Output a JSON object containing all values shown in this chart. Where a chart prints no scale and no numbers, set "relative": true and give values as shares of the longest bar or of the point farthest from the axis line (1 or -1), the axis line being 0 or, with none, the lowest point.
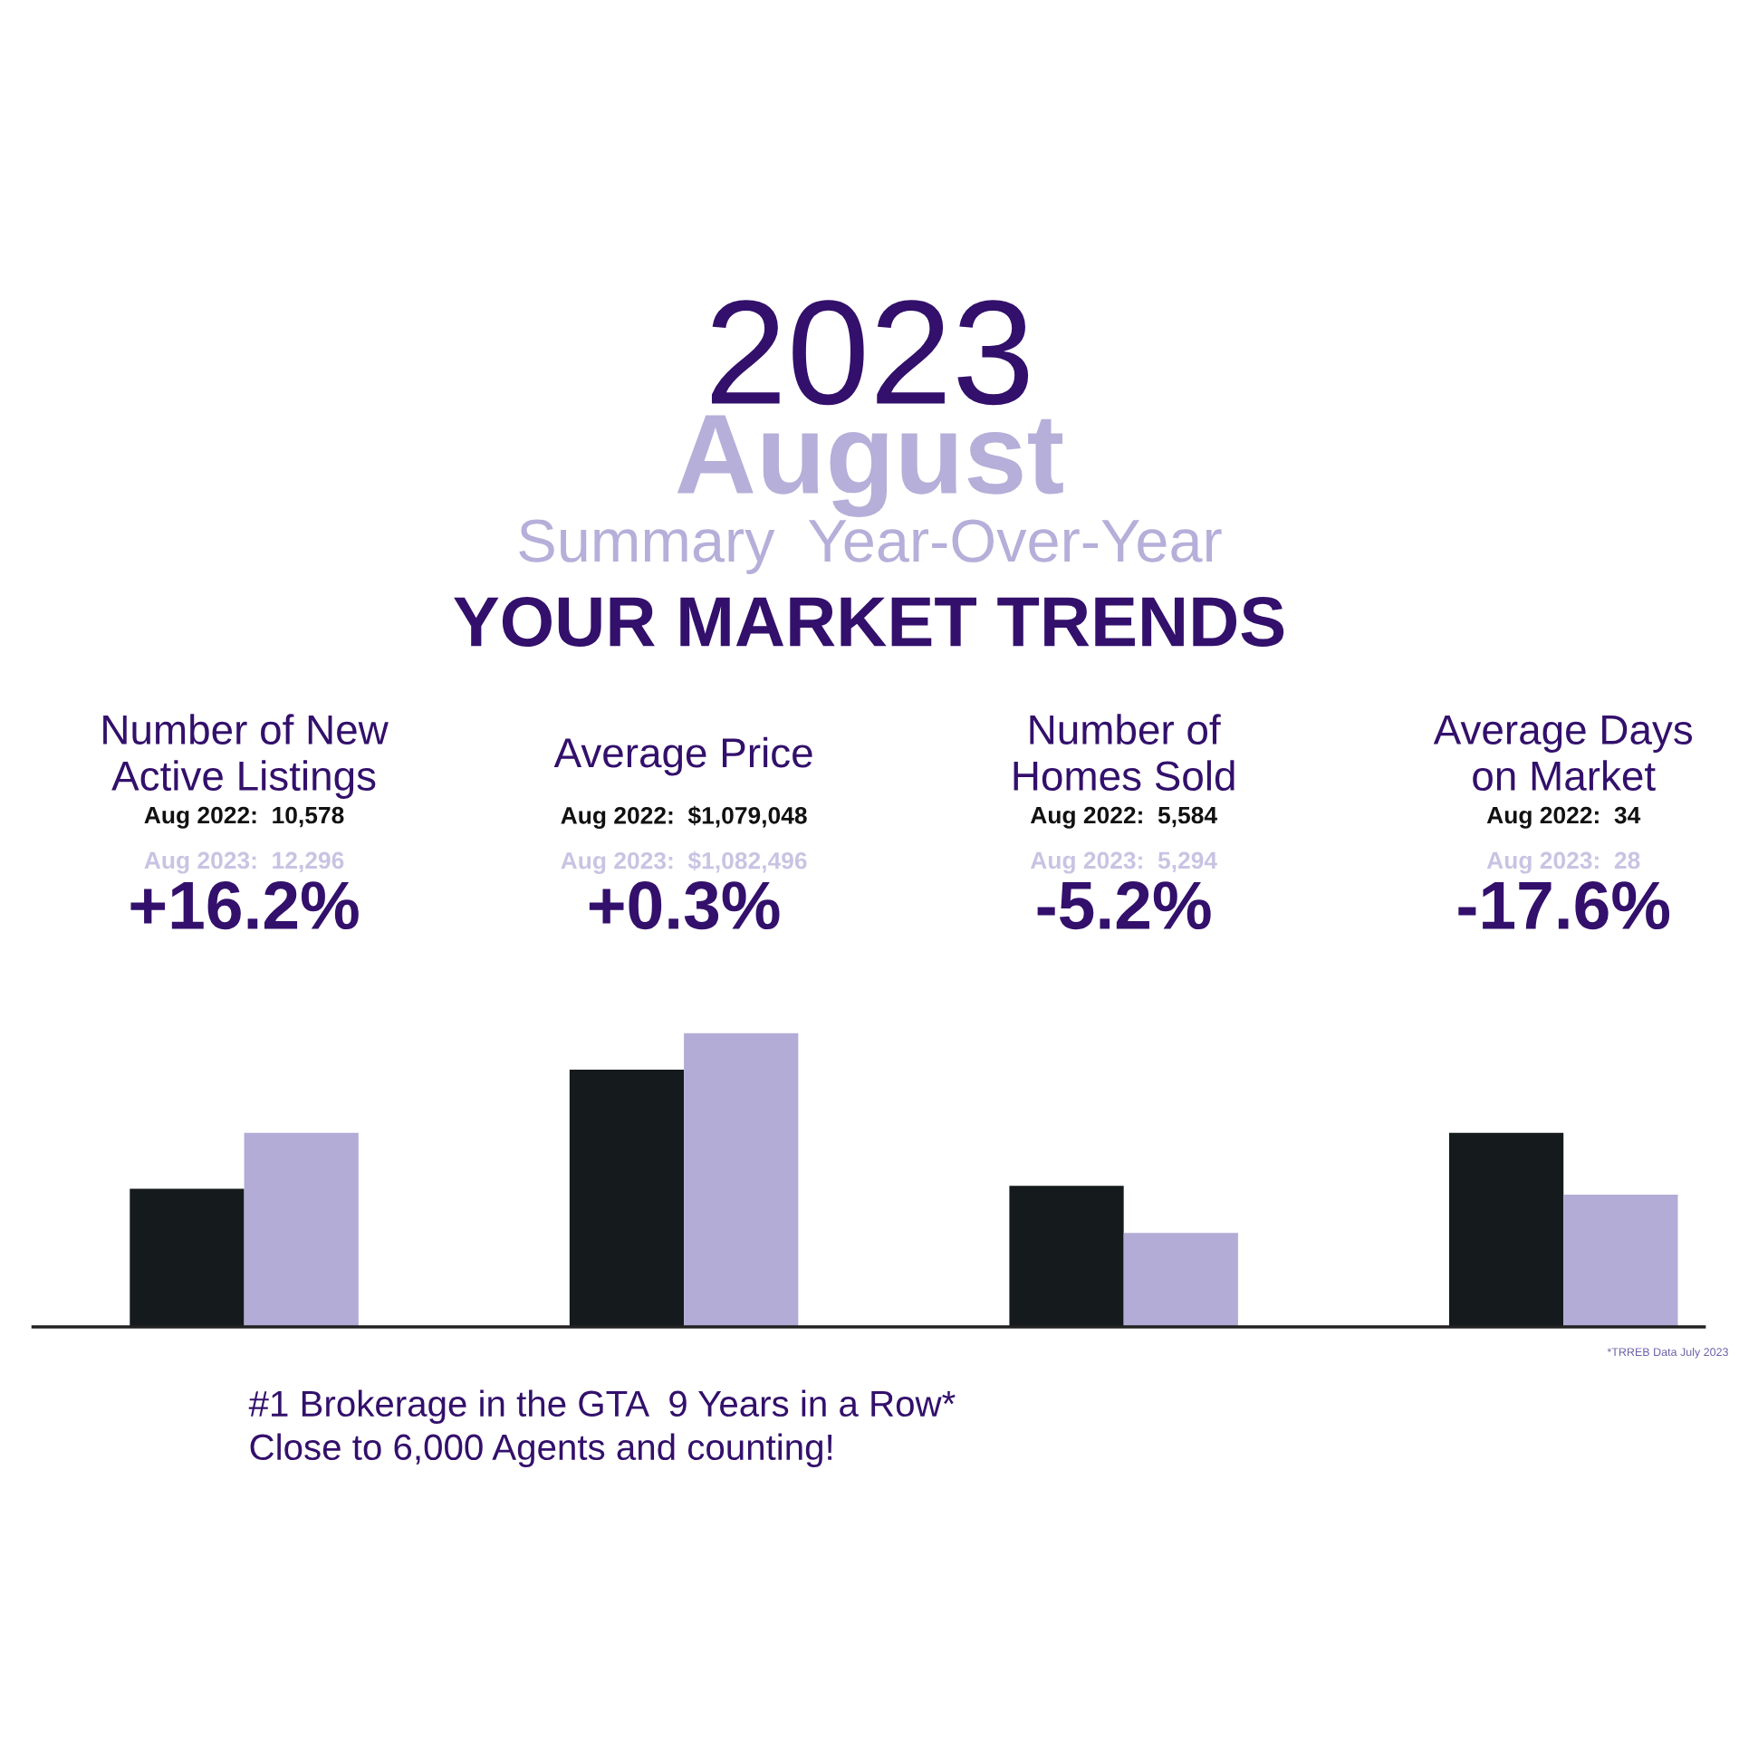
{
  "chart_data": {
    "type": "bar",
    "title": "2023",
    "subtitle": "August",
    "relative": true,
    "categories": [
      "Number of New\nActive Listings",
      "Average Price",
      "Number of\nHomes Sold",
      "Average Days\non Market"
    ],
    "series": [
      {
        "color": "#151a1c",
        "values": [
          0.47,
          0.875,
          0.48,
          0.66
        ]
      },
      {
        "color": "#b2acd6",
        "values": [
          0.66,
          1,
          0.32,
          0.45
        ]
      }
    ],
    "annotations": [
      "Summary  Year-Over-Year",
      "YOUR MARKET TRENDS",
      "#1 Brokerage in the GTA  9 Years in a Row*",
      "Close to 6,000 Agents and counting!",
      "*TRREB Data July 2023",
      "Aug 2022:  10,578",
      "Aug 2023:  12,296",
      "+16.2%",
      "Aug 2022:  $1,079,048",
      "Aug 2023:  $1,082,496",
      "+0.3%",
      "Aug 2022:  5,584",
      "Aug 2023:  5,294",
      "-5.2%",
      "Aug 2022:  34",
      "Aug 2023:  28",
      "-17.6%"
    ]
  }
}
